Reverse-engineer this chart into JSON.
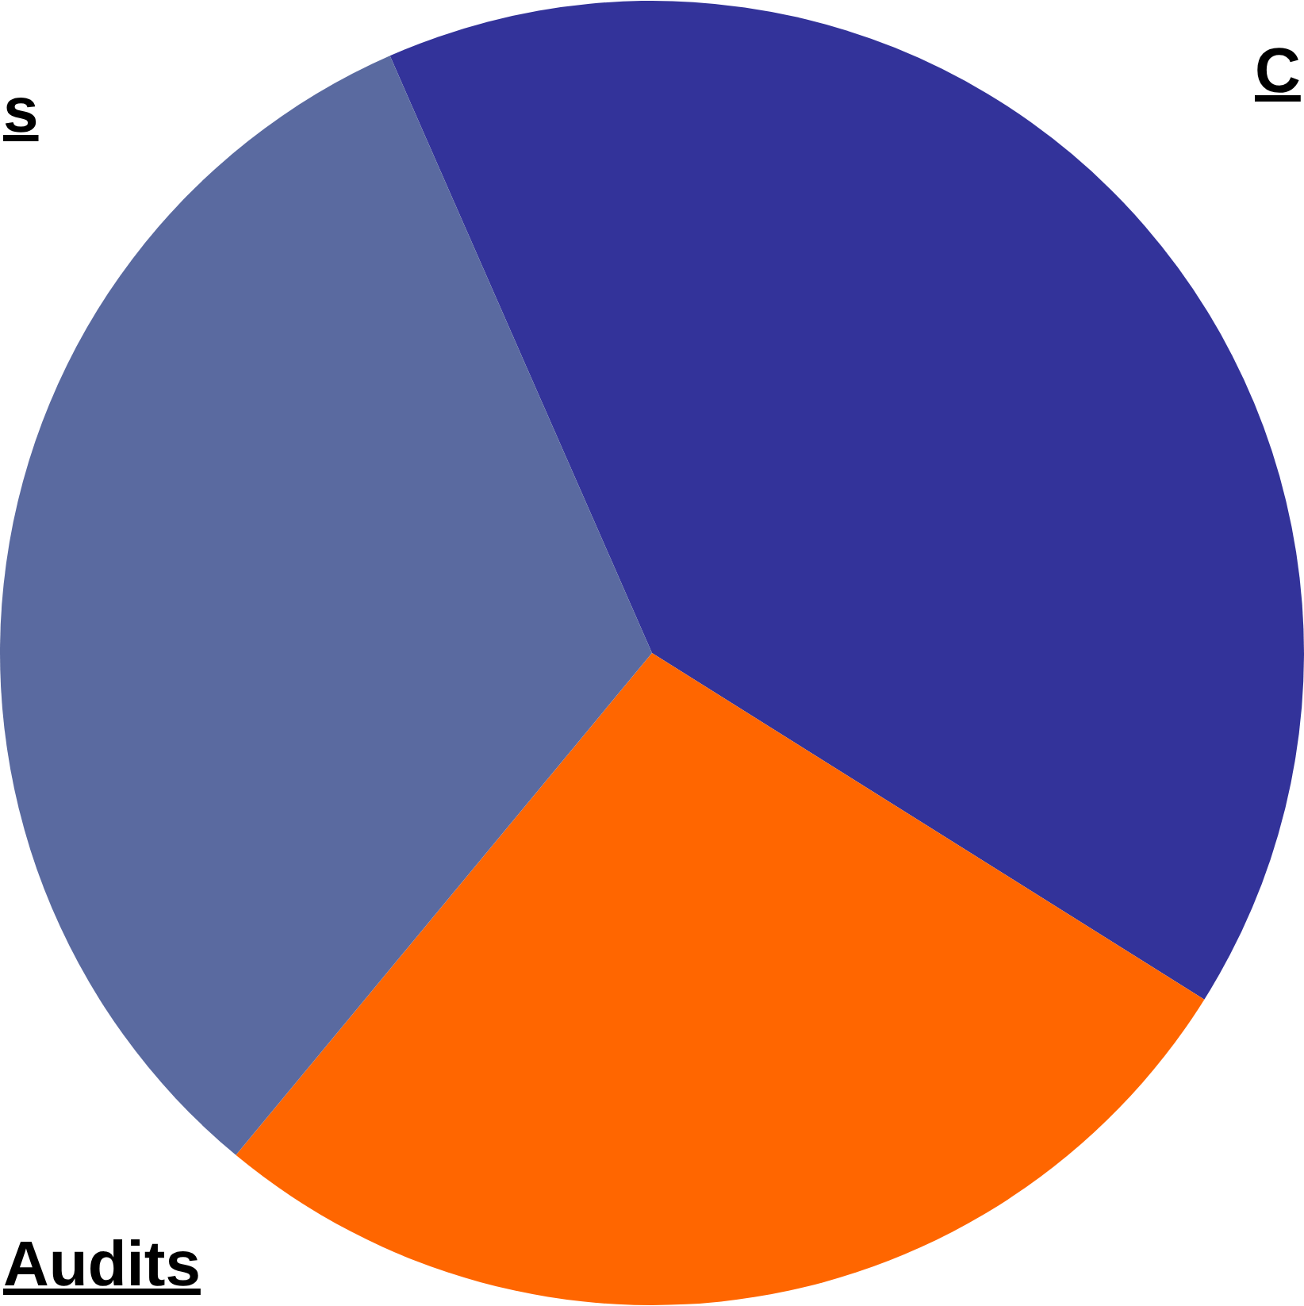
{
  "chart_data": {
    "type": "pie",
    "categories": [
      null,
      null,
      null
    ],
    "values": [
      40.5,
      27.1,
      32.4
    ],
    "colors": [
      "#33339a",
      "#ff6600",
      "#5a6aa0"
    ],
    "annotations": [
      "s",
      "Audits",
      "C"
    ],
    "legend": false
  }
}
